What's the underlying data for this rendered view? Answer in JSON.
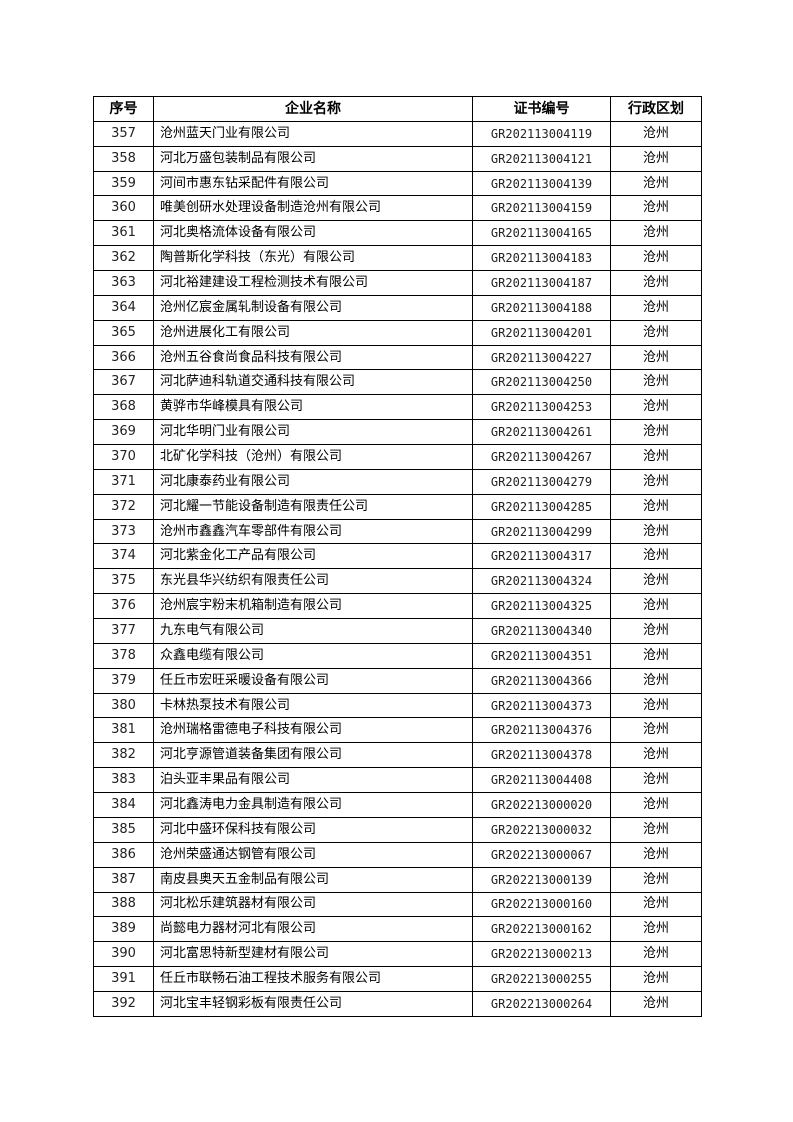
{
  "table": {
    "headers": [
      "序号",
      "企业名称",
      "证书编号",
      "行政区划"
    ],
    "rows": [
      [
        "357",
        "沧州蓝天门业有限公司",
        "GR202113004119",
        "沧州"
      ],
      [
        "358",
        "河北万盛包装制品有限公司",
        "GR202113004121",
        "沧州"
      ],
      [
        "359",
        "河间市惠东钻采配件有限公司",
        "GR202113004139",
        "沧州"
      ],
      [
        "360",
        "唯美创研水处理设备制造沧州有限公司",
        "GR202113004159",
        "沧州"
      ],
      [
        "361",
        "河北奥格流体设备有限公司",
        "GR202113004165",
        "沧州"
      ],
      [
        "362",
        "陶普斯化学科技（东光）有限公司",
        "GR202113004183",
        "沧州"
      ],
      [
        "363",
        "河北裕建建设工程检测技术有限公司",
        "GR202113004187",
        "沧州"
      ],
      [
        "364",
        "沧州亿宸金属轧制设备有限公司",
        "GR202113004188",
        "沧州"
      ],
      [
        "365",
        "沧州进展化工有限公司",
        "GR202113004201",
        "沧州"
      ],
      [
        "366",
        "沧州五谷食尚食品科技有限公司",
        "GR202113004227",
        "沧州"
      ],
      [
        "367",
        "河北萨迪科轨道交通科技有限公司",
        "GR202113004250",
        "沧州"
      ],
      [
        "368",
        "黄骅市华峰模具有限公司",
        "GR202113004253",
        "沧州"
      ],
      [
        "369",
        "河北华明门业有限公司",
        "GR202113004261",
        "沧州"
      ],
      [
        "370",
        "北矿化学科技（沧州）有限公司",
        "GR202113004267",
        "沧州"
      ],
      [
        "371",
        "河北康泰药业有限公司",
        "GR202113004279",
        "沧州"
      ],
      [
        "372",
        "河北耀一节能设备制造有限责任公司",
        "GR202113004285",
        "沧州"
      ],
      [
        "373",
        "沧州市鑫鑫汽车零部件有限公司",
        "GR202113004299",
        "沧州"
      ],
      [
        "374",
        "河北紫金化工产品有限公司",
        "GR202113004317",
        "沧州"
      ],
      [
        "375",
        "东光县华兴纺织有限责任公司",
        "GR202113004324",
        "沧州"
      ],
      [
        "376",
        "沧州宸宇粉末机箱制造有限公司",
        "GR202113004325",
        "沧州"
      ],
      [
        "377",
        "九东电气有限公司",
        "GR202113004340",
        "沧州"
      ],
      [
        "378",
        "众鑫电缆有限公司",
        "GR202113004351",
        "沧州"
      ],
      [
        "379",
        "任丘市宏旺采暖设备有限公司",
        "GR202113004366",
        "沧州"
      ],
      [
        "380",
        "卡林热泵技术有限公司",
        "GR202113004373",
        "沧州"
      ],
      [
        "381",
        "沧州瑞格雷德电子科技有限公司",
        "GR202113004376",
        "沧州"
      ],
      [
        "382",
        "河北亨源管道装备集团有限公司",
        "GR202113004378",
        "沧州"
      ],
      [
        "383",
        "泊头亚丰果品有限公司",
        "GR202113004408",
        "沧州"
      ],
      [
        "384",
        "河北鑫涛电力金具制造有限公司",
        "GR202213000020",
        "沧州"
      ],
      [
        "385",
        "河北中盛环保科技有限公司",
        "GR202213000032",
        "沧州"
      ],
      [
        "386",
        "沧州荣盛通达钢管有限公司",
        "GR202213000067",
        "沧州"
      ],
      [
        "387",
        "南皮县奥天五金制品有限公司",
        "GR202213000139",
        "沧州"
      ],
      [
        "388",
        "河北松乐建筑器材有限公司",
        "GR202213000160",
        "沧州"
      ],
      [
        "389",
        "尚懿电力器材河北有限公司",
        "GR202213000162",
        "沧州"
      ],
      [
        "390",
        "河北富思特新型建材有限公司",
        "GR202213000213",
        "沧州"
      ],
      [
        "391",
        "任丘市联畅石油工程技术服务有限公司",
        "GR202213000255",
        "沧州"
      ],
      [
        "392",
        "河北宝丰轻钢彩板有限责任公司",
        "GR202213000264",
        "沧州"
      ]
    ]
  }
}
